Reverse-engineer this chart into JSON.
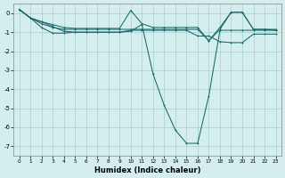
{
  "xlabel": "Humidex (Indice chaleur)",
  "background_color": "#d4eeee",
  "grid_color": "#aed4d4",
  "line_color": "#1a6868",
  "xlim": [
    -0.5,
    23.5
  ],
  "ylim": [
    -7.5,
    0.5
  ],
  "xticks": [
    0,
    1,
    2,
    3,
    4,
    5,
    6,
    7,
    8,
    9,
    10,
    11,
    12,
    13,
    14,
    15,
    16,
    17,
    18,
    19,
    20,
    21,
    22,
    23
  ],
  "yticks": [
    0,
    -1,
    -2,
    -3,
    -4,
    -5,
    -6,
    -7
  ],
  "series": [
    [
      0.2,
      -0.25,
      -0.45,
      -0.6,
      -0.75,
      -0.8,
      -0.8,
      -0.8,
      -0.8,
      -0.8,
      0.15,
      -0.55,
      -0.75,
      -0.75,
      -0.75,
      -0.75,
      -0.75,
      -1.45,
      -0.75,
      0.05,
      0.05,
      -0.85,
      -0.85,
      -0.85
    ],
    [
      0.2,
      -0.25,
      -0.55,
      -0.75,
      -0.85,
      -0.85,
      -0.85,
      -0.85,
      -0.85,
      -0.85,
      -0.85,
      -0.85,
      -0.85,
      -0.85,
      -0.85,
      -0.85,
      -0.85,
      -1.45,
      -0.85,
      0.05,
      0.05,
      -0.85,
      -0.85,
      -0.9
    ],
    [
      0.2,
      -0.25,
      -0.75,
      -1.05,
      -1.05,
      -1.0,
      -1.0,
      -1.0,
      -1.0,
      -1.0,
      -0.95,
      -0.6,
      -3.2,
      -4.85,
      -6.15,
      -6.85,
      -6.85,
      -4.35,
      -0.9,
      -0.9,
      -0.9,
      -0.9,
      -0.9,
      -0.9
    ],
    [
      0.2,
      -0.25,
      -0.45,
      -0.7,
      -0.95,
      -1.0,
      -1.0,
      -1.0,
      -1.0,
      -1.0,
      -0.9,
      -0.9,
      -0.9,
      -0.9,
      -0.9,
      -0.9,
      -1.2,
      -1.2,
      -1.5,
      -1.55,
      -1.55,
      -1.1,
      -1.1,
      -1.1
    ]
  ]
}
